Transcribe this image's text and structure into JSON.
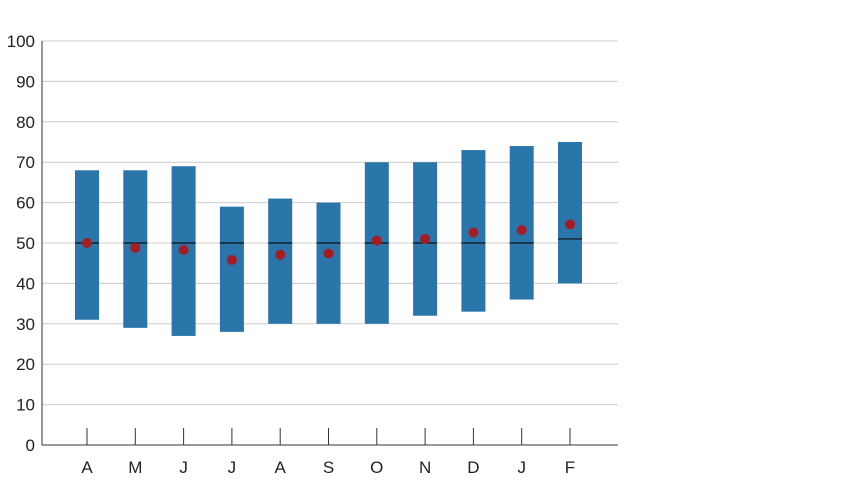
{
  "chart_data": {
    "type": "bar",
    "title": "",
    "xlabel": "",
    "ylabel": "",
    "ylim": [
      0,
      100
    ],
    "yticks": [
      0,
      10,
      20,
      30,
      40,
      50,
      60,
      70,
      80,
      90,
      100
    ],
    "grid": true,
    "categories": [
      "A",
      "M",
      "J",
      "J",
      "A",
      "S",
      "O",
      "N",
      "D",
      "J",
      "F"
    ],
    "series": [
      {
        "type": "range",
        "low": [
          31,
          29,
          27,
          28,
          30,
          30,
          30,
          32,
          33,
          36,
          40
        ],
        "high": [
          68,
          68,
          69,
          59,
          61,
          60,
          70,
          70,
          73,
          74,
          75
        ]
      },
      {
        "type": "line-marker",
        "values": [
          50,
          50,
          50,
          50,
          50,
          50,
          50,
          50,
          50,
          50,
          51
        ]
      },
      {
        "type": "dot",
        "values": [
          50,
          48.8,
          48.3,
          45.8,
          47.1,
          47.4,
          50.6,
          51,
          52.6,
          53.2,
          54.6
        ]
      }
    ],
    "colors": {
      "range": "#2a75a9",
      "dot": "#a51c24",
      "marker": "#111111",
      "grid": "#cccccc",
      "axis": "#333333"
    }
  }
}
